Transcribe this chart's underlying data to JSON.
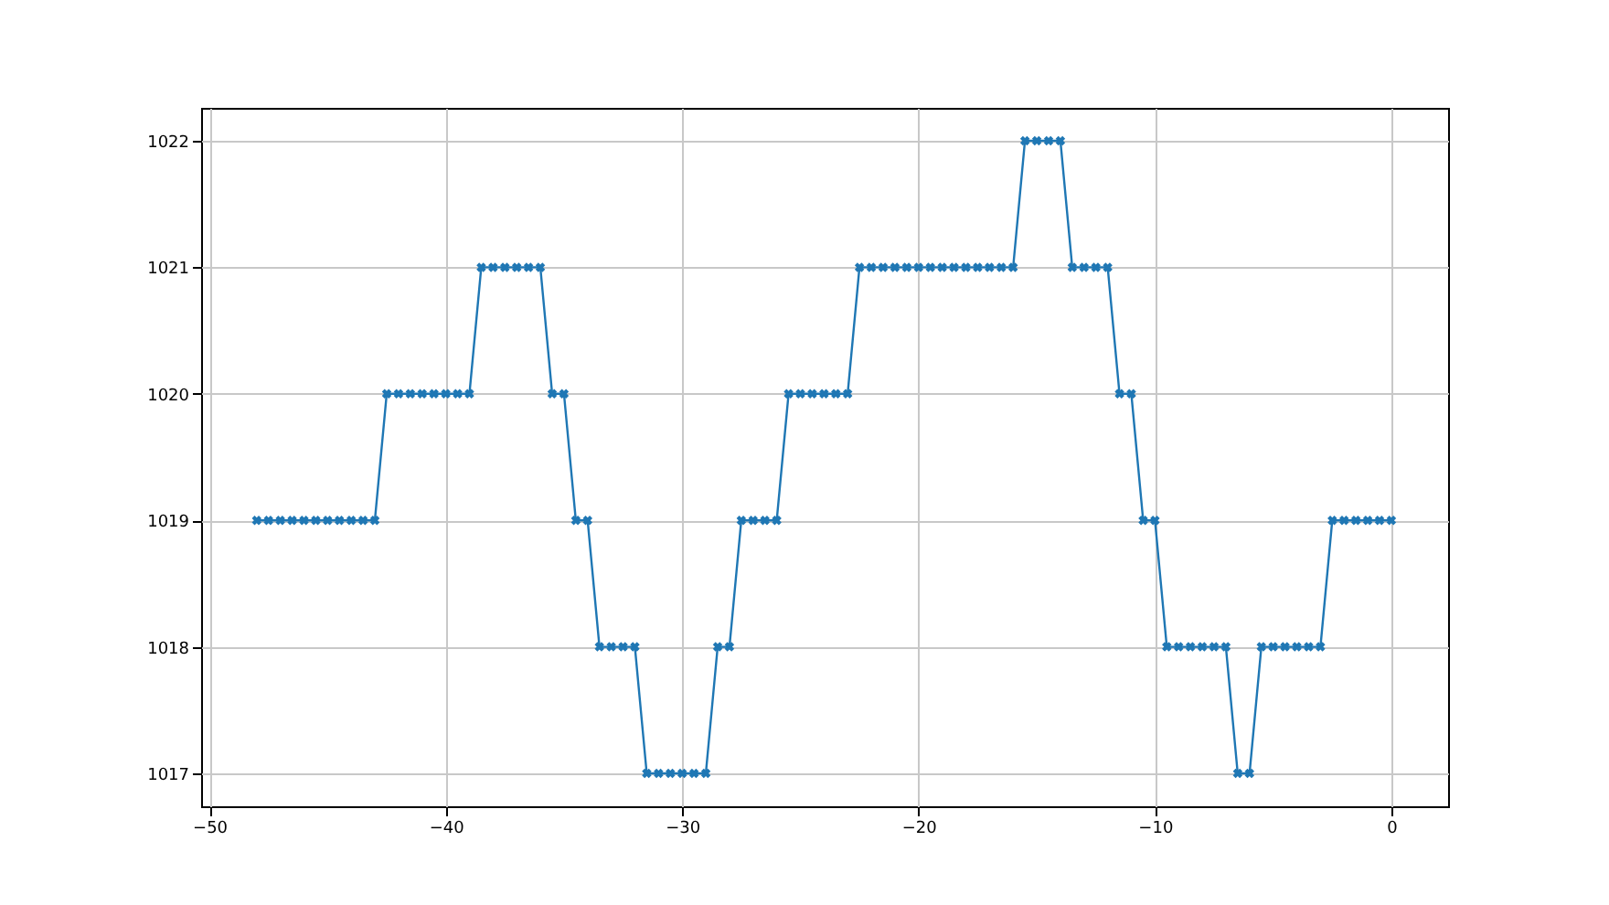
{
  "chart_data": {
    "type": "line",
    "x": [
      -48,
      -47.5,
      -47,
      -46.5,
      -46,
      -45.5,
      -45,
      -44.5,
      -44,
      -43.5,
      -43,
      -42.5,
      -42,
      -41.5,
      -41,
      -40.5,
      -40,
      -39.5,
      -39,
      -38.5,
      -38,
      -37.5,
      -37,
      -36.5,
      -36,
      -35.5,
      -35,
      -34.5,
      -34,
      -33.5,
      -33,
      -32.5,
      -32,
      -31.5,
      -31,
      -30.5,
      -30,
      -29.5,
      -29,
      -28.5,
      -28,
      -27.5,
      -27,
      -26.5,
      -26,
      -25.5,
      -25,
      -24.5,
      -24,
      -23.5,
      -23,
      -22.5,
      -22,
      -21.5,
      -21,
      -20.5,
      -20,
      -19.5,
      -19,
      -18.5,
      -18,
      -17.5,
      -17,
      -16.5,
      -16,
      -15.5,
      -15,
      -14.5,
      -14,
      -13.5,
      -13,
      -12.5,
      -12,
      -11.5,
      -11,
      -10.5,
      -10,
      -9.5,
      -9,
      -8.5,
      -8,
      -7.5,
      -7,
      -6.5,
      -6,
      -5.5,
      -5,
      -4.5,
      -4,
      -3.5,
      -3,
      -2.5,
      -2,
      -1.5,
      -1,
      -0.5,
      0
    ],
    "series": [
      {
        "color": "#1f77b4",
        "values": [
          1019,
          1019,
          1019,
          1019,
          1019,
          1019,
          1019,
          1019,
          1019,
          1019,
          1019,
          1020,
          1020,
          1020,
          1020,
          1020,
          1020,
          1020,
          1020,
          1021,
          1021,
          1021,
          1021,
          1021,
          1021,
          1020,
          1020,
          1019,
          1019,
          1018,
          1018,
          1018,
          1018,
          1017,
          1017,
          1017,
          1017,
          1017,
          1017,
          1018,
          1018,
          1019,
          1019,
          1019,
          1019,
          1020,
          1020,
          1020,
          1020,
          1020,
          1020,
          1021,
          1021,
          1021,
          1021,
          1021,
          1021,
          1021,
          1021,
          1021,
          1021,
          1021,
          1021,
          1021,
          1021,
          1022,
          1022,
          1022,
          1022,
          1021,
          1021,
          1021,
          1021,
          1020,
          1020,
          1019,
          1019,
          1018,
          1018,
          1018,
          1018,
          1018,
          1018,
          1017,
          1017,
          1018,
          1018,
          1018,
          1018,
          1018,
          1018,
          1019,
          1019,
          1019,
          1019,
          1019,
          1019
        ]
      }
    ],
    "xlim": [
      -50.35,
      2.4
    ],
    "ylim": [
      1016.74,
      1022.26
    ],
    "xticks": [
      -50,
      -40,
      -30,
      -20,
      -10,
      0
    ],
    "yticks": [
      1017,
      1018,
      1019,
      1020,
      1021,
      1022
    ],
    "grid": true,
    "marker": "cross",
    "line_style": "solid"
  }
}
